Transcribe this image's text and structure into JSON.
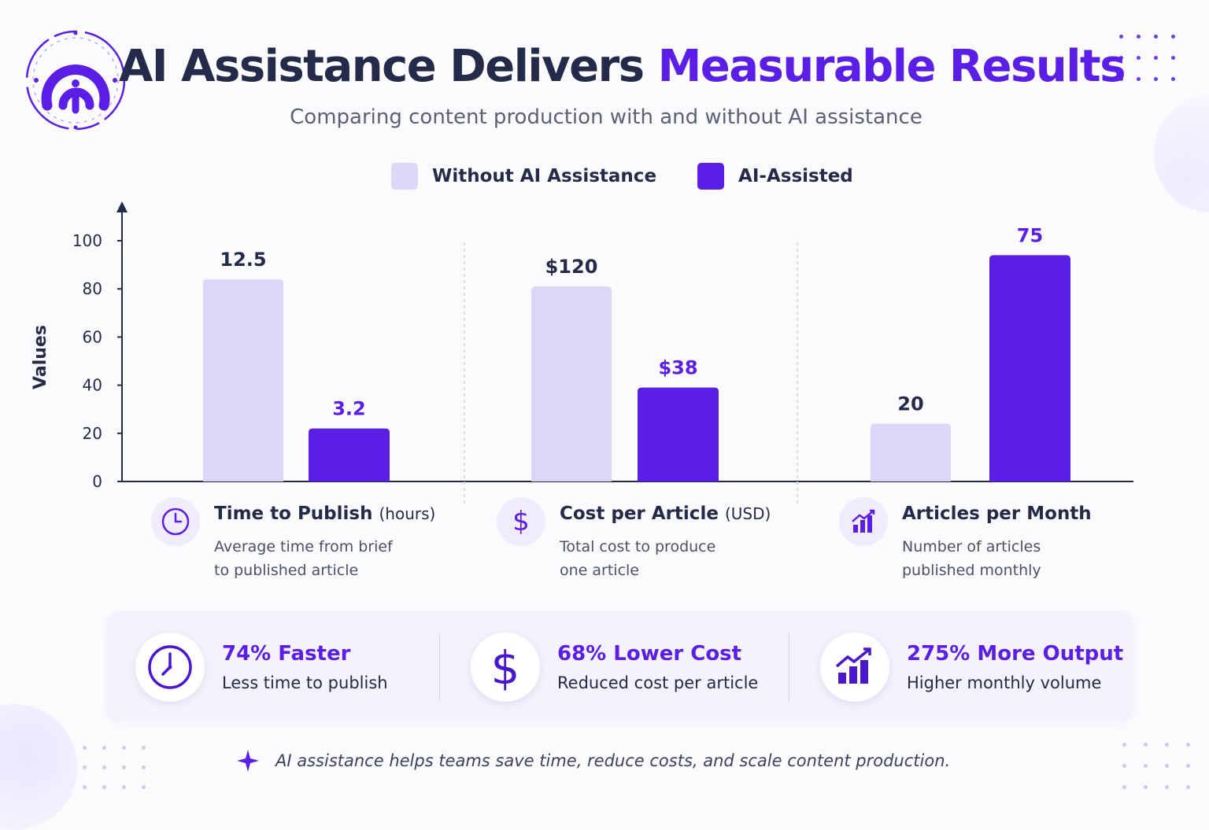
{
  "header": {
    "title_main": "AI Assistance Delivers",
    "title_accent": "Measurable Results",
    "subtitle": "Comparing content production with and without AI assistance"
  },
  "colors": {
    "without_ai": "#dcd6f7",
    "ai_assisted": "#5a1ee6",
    "text_dark": "#242a4a",
    "accent": "#5a1ee6"
  },
  "chart_data": {
    "type": "bar",
    "ylabel": "Values",
    "ylim": [
      0,
      100
    ],
    "yticks": [
      0,
      20,
      40,
      60,
      80,
      100
    ],
    "legend_position": "top",
    "categories": [
      "Time to Publish",
      "Cost per Article",
      "Articles per Month"
    ],
    "series": [
      {
        "name": "Without AI Assistance",
        "color": "#dcd6f7",
        "values": [
          84,
          81,
          24
        ],
        "labels": [
          "12.5",
          "$120",
          "20"
        ]
      },
      {
        "name": "AI-Assisted",
        "color": "#5a1ee6",
        "values": [
          22,
          39,
          94
        ],
        "labels": [
          "3.2",
          "$38",
          "75"
        ]
      }
    ]
  },
  "categories_info": [
    {
      "name": "Time to Publish",
      "unit": "(hours)",
      "desc_line1": "Average time from brief",
      "desc_line2": "to published article",
      "icon": "clock-icon"
    },
    {
      "name": "Cost per Article",
      "unit": "(USD)",
      "desc_line1": "Total cost to produce",
      "desc_line2": "one article",
      "icon": "dollar-icon"
    },
    {
      "name": "Articles per Month",
      "unit": "",
      "desc_line1": "Number of articles",
      "desc_line2": "published monthly",
      "icon": "bar-chart-icon"
    }
  ],
  "summary": [
    {
      "headline": "74% Faster",
      "sub": "Less time to publish",
      "icon": "clock-icon"
    },
    {
      "headline": "68% Lower Cost",
      "sub": "Reduced cost per article",
      "icon": "dollar-icon"
    },
    {
      "headline": "275% More Output",
      "sub": "Higher monthly volume",
      "icon": "growth-chart-icon"
    }
  ],
  "footer": {
    "text": "AI assistance helps teams save time, reduce costs, and scale content production.",
    "icon": "sparkle-icon"
  }
}
